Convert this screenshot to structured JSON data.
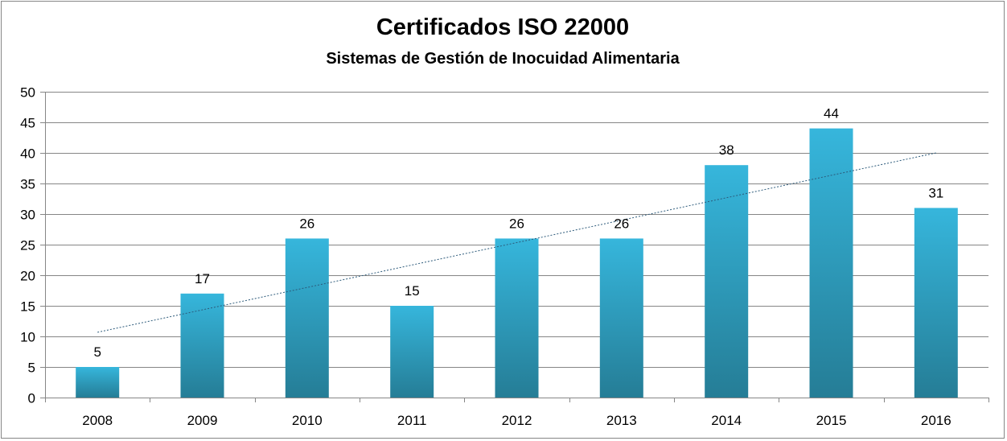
{
  "chart_data": {
    "type": "bar",
    "title": "Certificados  ISO 22000",
    "subtitle": "Sistemas de Gestión de Inocuidad  Alimentaria",
    "xlabel": "",
    "ylabel": "",
    "categories": [
      "2008",
      "2009",
      "2010",
      "2011",
      "2012",
      "2013",
      "2014",
      "2015",
      "2016"
    ],
    "series": [
      {
        "values": [
          5,
          17,
          26,
          15,
          26,
          26,
          38,
          44,
          31
        ],
        "color": "#31A8CC",
        "data_labels": true
      }
    ],
    "trendline": {
      "type": "linear",
      "style": "dotted",
      "color": "#2C5A7A"
    },
    "ylim": [
      0,
      50
    ],
    "yticks": [
      0,
      5,
      10,
      15,
      20,
      25,
      30,
      35,
      40,
      45,
      50
    ],
    "grid": true,
    "legend": "none",
    "colors": {
      "bar_top": "#36B6DC",
      "bar_bottom": "#257D96",
      "grid": "#868686",
      "axis": "#868686"
    }
  }
}
